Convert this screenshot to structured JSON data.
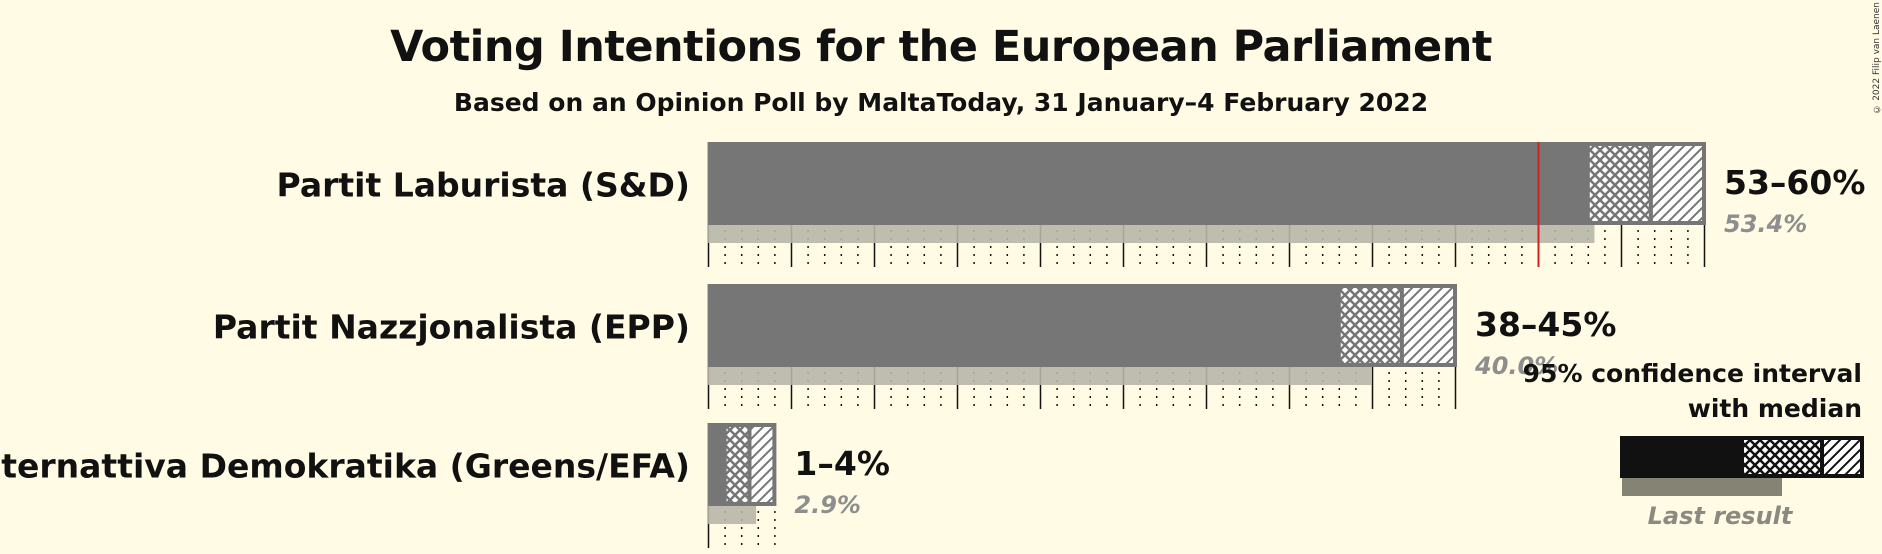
{
  "title": "Voting Intentions for the European Parliament",
  "subtitle": "Based on an Opinion Poll by MaltaToday, 31 January–4 February 2022",
  "copyright": "© 2022 Filip van Laenen",
  "chart_data": {
    "type": "bar",
    "orientation": "horizontal",
    "categories": [
      "Partit Laburista (S&D)",
      "Partit Nazzjonalista (EPP)",
      "Alternattiva Demokratika (Greens/EFA)"
    ],
    "series": [
      {
        "name": "95% confidence interval with median",
        "values": [
          {
            "low": 53,
            "median": 56.8,
            "high": 60,
            "range_label": "53–60%"
          },
          {
            "low": 38,
            "median": 41.8,
            "high": 45,
            "range_label": "38–45%"
          },
          {
            "low": 1,
            "median": 2.5,
            "high": 4,
            "range_label": "1–4%"
          }
        ]
      },
      {
        "name": "Last result",
        "values": [
          53.4,
          40.0,
          2.9
        ],
        "labels": [
          "53.4%",
          "40.0%",
          "2.9%"
        ]
      }
    ],
    "majority_line": 50,
    "xlim": [
      0,
      60
    ],
    "grid": "dotted vertical lines every 1%, solid every 5%",
    "legend": {
      "title": "95% confidence interval with median",
      "last_result_label": "Last result",
      "placement": "bottom-right"
    },
    "colors": {
      "ci_fill": "#767676",
      "ci_outline": "#767676",
      "last_result": "#b8b6a7",
      "majority_line": "#d62020",
      "legend_fill": "#111111",
      "legend_last_result": "#858374",
      "background": "#fffbe4"
    }
  }
}
